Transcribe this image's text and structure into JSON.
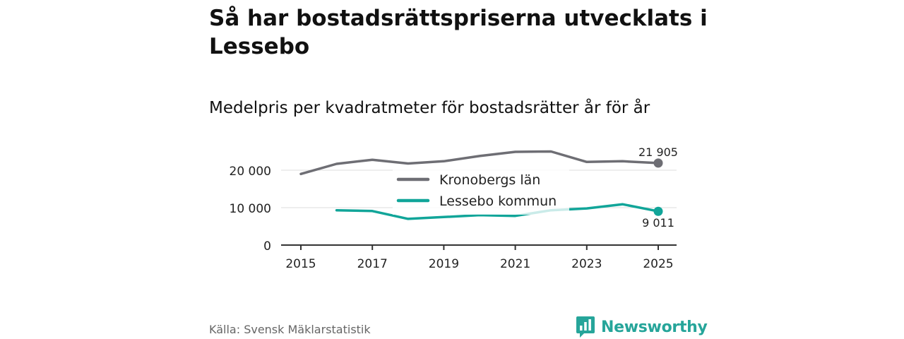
{
  "page": {
    "title": "Så har bostadsrättspriserna utvecklats i Lessebo",
    "subtitle": "Medelpris per kvadratmeter för bostadsrätter år för år",
    "source": "Källa: Svensk Mäklarstatistik",
    "brand": "Newsworthy"
  },
  "colors": {
    "kronoberg": "#6e6e74",
    "lessebo": "#11a599",
    "grid": "#dddddd",
    "axis": "#333333",
    "brand": "#26a59a"
  },
  "chart_data": {
    "type": "line",
    "title": "Medelpris per kvadratmeter för bostadsrätter år för år",
    "xlabel": "",
    "ylabel": "",
    "xlim": [
      2015,
      2025
    ],
    "ylim": [
      0,
      20000
    ],
    "x_ticks": [
      2015,
      2017,
      2019,
      2021,
      2023,
      2025
    ],
    "x_tick_labels": [
      "2015",
      "2017",
      "2019",
      "2021",
      "2023",
      "2025"
    ],
    "y_ticks": [
      0,
      10000,
      20000
    ],
    "y_tick_labels": [
      "0",
      "10 000",
      "20 000"
    ],
    "grid": true,
    "legend_position": "center",
    "series": [
      {
        "name": "Kronobergs län",
        "x": [
          2015,
          2016,
          2017,
          2018,
          2019,
          2020,
          2021,
          2022,
          2023,
          2024,
          2025
        ],
        "values": [
          19000,
          21700,
          22800,
          21800,
          22400,
          23800,
          24900,
          25000,
          22200,
          22400,
          21905
        ],
        "end_label": "21 905"
      },
      {
        "name": "Lessebo kommun",
        "x": [
          2016,
          2017,
          2018,
          2019,
          2020,
          2021,
          2022,
          2023,
          2024,
          2025
        ],
        "values": [
          9300,
          9100,
          7000,
          7500,
          8000,
          7800,
          9300,
          9800,
          10900,
          9011
        ],
        "end_label": "9 011"
      }
    ]
  }
}
